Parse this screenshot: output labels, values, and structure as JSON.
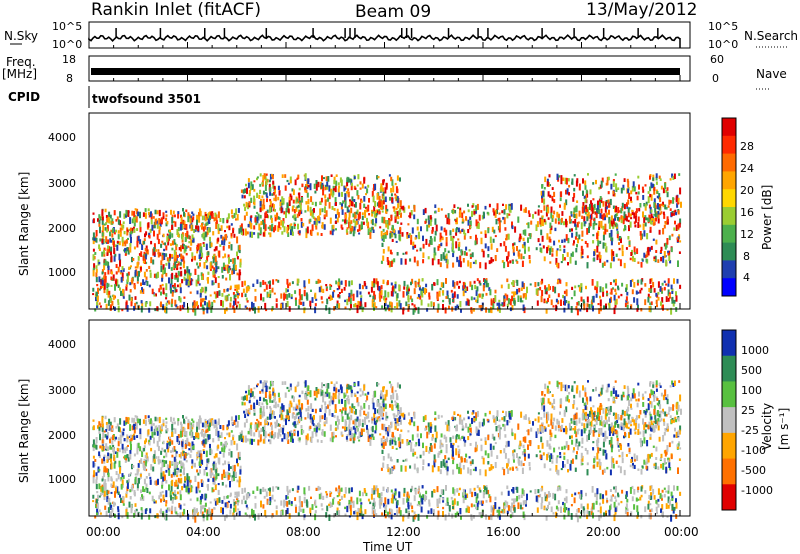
{
  "header": {
    "station": "Rankin Inlet (fitACF)",
    "beam": "Beam 09",
    "date": "13/May/2012"
  },
  "strip_labels": {
    "nsky": "N.Sky",
    "nsearch": "N.Search",
    "freq": "Freq.",
    "freq_unit": "[MHz]",
    "nave": "Nave",
    "cpid": "CPID",
    "cpid_value": "twofsound 3501"
  },
  "colors": {
    "power_scale": [
      "#0000ff",
      "#1f3fb0",
      "#2e8c55",
      "#4cb04c",
      "#9acd32",
      "#ffd700",
      "#ffa500",
      "#ff6a00",
      "#ff2a00",
      "#e00000"
    ],
    "velocity_scale": [
      "#1030b0",
      "#2e8c55",
      "#58c040",
      "#c0c0c0",
      "#ffa500",
      "#ff7000",
      "#e00000"
    ],
    "frame": "#000000"
  },
  "chart_data": [
    {
      "type": "line",
      "name_left": "N.Sky",
      "name_right": "N.Search",
      "left_ticks": [
        "10^5",
        "10^0"
      ],
      "right_ticks": [
        "10^5",
        "10^0"
      ],
      "x_range_hours": [
        0,
        24
      ],
      "spikes_hours": [
        1.1,
        2.9,
        4.7,
        5.5,
        7.2,
        9.1,
        10.4,
        10.6,
        10.8,
        12.7,
        12.9,
        13.1,
        14.6,
        15.8,
        16.2,
        18.4,
        19.7,
        20.9,
        22.3,
        23.1
      ]
    },
    {
      "type": "line",
      "name_left": "Freq. [MHz]",
      "name_right": "Nave",
      "left_ticks": [
        "18",
        "8"
      ],
      "right_ticks": [
        "60",
        "0"
      ],
      "x_range_hours": [
        0,
        24
      ],
      "level_mhz": 10.5
    },
    {
      "type": "heatmap",
      "ylabel": "Slant Range [km]",
      "y_ticks": [
        "1000",
        "2000",
        "3000",
        "4000"
      ],
      "y_range_km": [
        180,
        4600
      ],
      "colorbar_label": "Power [dB]",
      "colorbar_ticks": [
        "28",
        "24",
        "20",
        "16",
        "12",
        "8",
        "4"
      ],
      "x_range_hours": [
        0,
        24
      ]
    },
    {
      "type": "heatmap",
      "ylabel": "Slant Range [km]",
      "y_ticks": [
        "1000",
        "2000",
        "3000",
        "4000"
      ],
      "y_range_km": [
        180,
        4600
      ],
      "colorbar_label": "Velocity",
      "colorbar_unit": "[m s⁻¹]",
      "colorbar_ticks": [
        "1000",
        "500",
        "100",
        "25",
        "-25",
        "-100",
        "-500",
        "-1000"
      ],
      "x_range_hours": [
        0,
        24
      ]
    }
  ],
  "time_axis": {
    "xlabel": "Time UT",
    "ticks": [
      "00:00",
      "04:00",
      "08:00",
      "12:00",
      "16:00",
      "20:00",
      "00:00"
    ]
  }
}
